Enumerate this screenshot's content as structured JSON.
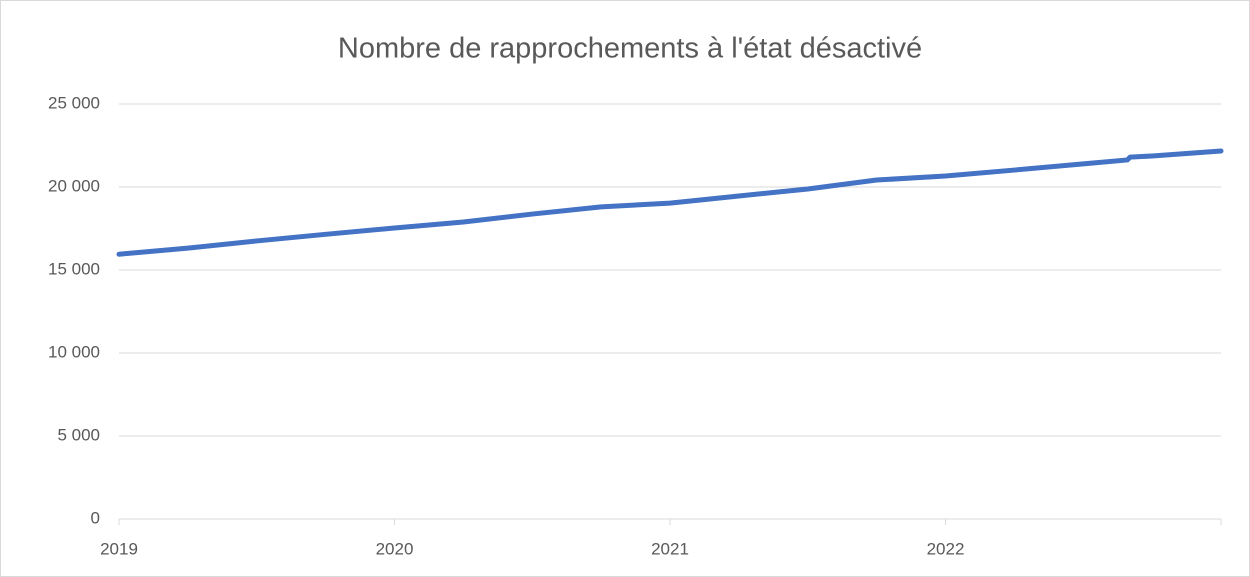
{
  "chart_data": {
    "type": "line",
    "title": "Nombre de rapprochements à l'état désactivé",
    "x": [
      2019.0,
      2019.25,
      2019.5,
      2019.75,
      2020.0,
      2020.25,
      2020.5,
      2020.75,
      2021.0,
      2021.25,
      2021.5,
      2021.75,
      2022.0,
      2022.25,
      2022.5,
      2022.66,
      2022.67,
      2022.75,
      2023.0
    ],
    "series": [
      {
        "name": "Nombre de rapprochements",
        "color": "#4472c4",
        "values": [
          15950,
          16320,
          16750,
          17150,
          17530,
          17890,
          18370,
          18800,
          19030,
          19460,
          19880,
          20420,
          20660,
          21020,
          21390,
          21630,
          21800,
          21870,
          22170
        ]
      }
    ],
    "xlim": [
      2019,
      2023
    ],
    "xticks": [
      2019,
      2020,
      2021,
      2022
    ],
    "ylim": [
      0,
      25000
    ],
    "yticks": [
      0,
      {
        "value": 5000,
        "label": "5 000"
      },
      {
        "value": 10000,
        "label": "10 000"
      },
      {
        "value": 15000,
        "label": "15 000"
      },
      {
        "value": 20000,
        "label": "20 000"
      },
      {
        "value": 25000,
        "label": "25 000"
      }
    ],
    "grid": true
  }
}
